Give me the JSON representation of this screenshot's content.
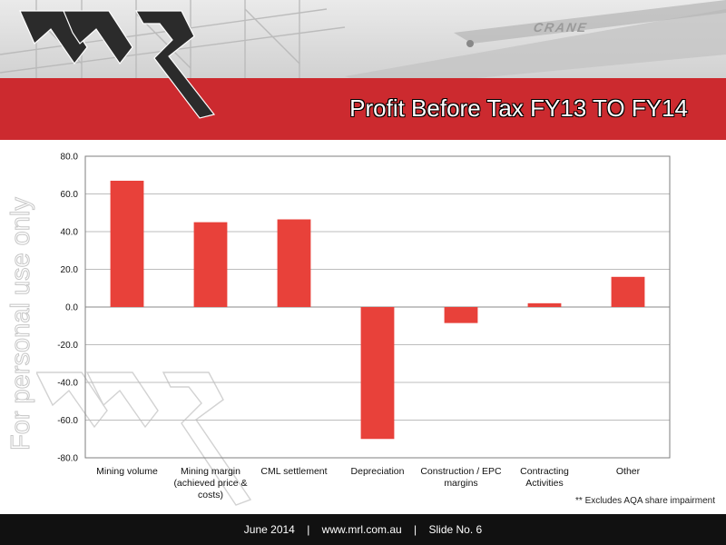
{
  "slide": {
    "title": "Profit Before Tax FY13 TO FY14",
    "watermark": "For personal use only",
    "footnote": "** Excludes AQA share impairment",
    "background_sign": "CRANE",
    "footer": {
      "date": "June 2014",
      "url": "www.mrl.com.au",
      "slide": "Slide No. 6"
    },
    "colors": {
      "brand_red": "#cc2a2f",
      "bar_red": "#e8413a",
      "footer_bg": "#111111"
    }
  },
  "chart_data": {
    "type": "bar",
    "categories": [
      "Mining volume",
      "Mining margin (achieved price & costs)",
      "CML settlement",
      "Depreciation",
      "Construction / EPC margins",
      "Contracting Activities",
      "Other"
    ],
    "category_lines": [
      [
        "Mining volume"
      ],
      [
        "Mining margin",
        "(achieved price &",
        "costs)"
      ],
      [
        "CML settlement"
      ],
      [
        "Depreciation"
      ],
      [
        "Construction / EPC",
        "margins"
      ],
      [
        "Contracting",
        "Activities"
      ],
      [
        "Other"
      ]
    ],
    "values": [
      67,
      45,
      46.5,
      -70,
      -8.5,
      2,
      16
    ],
    "ylim": [
      -80,
      80
    ],
    "yticks": [
      "80.0",
      "60.0",
      "40.0",
      "20.0",
      "0.0",
      "-20.0",
      "-40.0",
      "-60.0",
      "-80.0"
    ],
    "grid": true,
    "title": "",
    "xlabel": "",
    "ylabel": ""
  }
}
